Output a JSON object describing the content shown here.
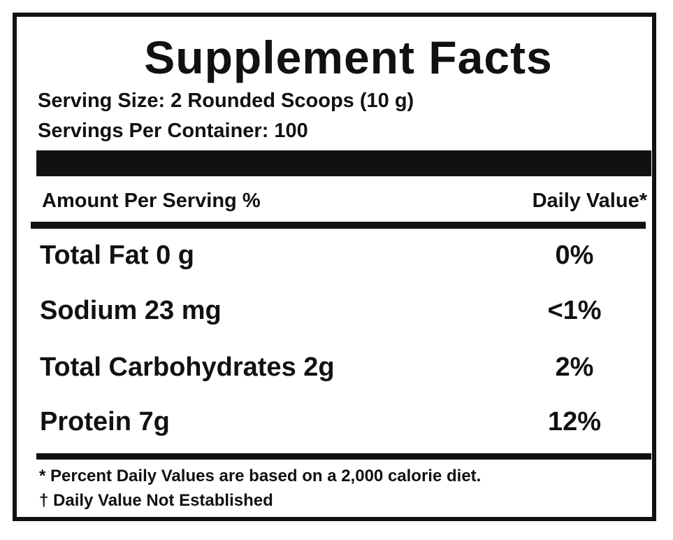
{
  "label": {
    "title": "Supplement Facts",
    "serving_size": "Serving Size: 2 Rounded Scoops (10 g)",
    "servings_per_container": "Servings Per Container: 100",
    "header": {
      "amount_per_serving": "Amount Per Serving %",
      "daily_value": "Daily Value*"
    },
    "nutrients": [
      {
        "name": "Total Fat 0 g",
        "daily_value": "0%"
      },
      {
        "name": "Sodium 23 mg",
        "daily_value": "<1%"
      },
      {
        "name": "Total Carbohydrates 2g",
        "daily_value": "2%"
      },
      {
        "name": "Protein 7g",
        "daily_value": "12%"
      }
    ],
    "footnotes": [
      "* Percent Daily Values are based on a 2,000 calorie diet.",
      "† Daily Value Not Established"
    ]
  }
}
